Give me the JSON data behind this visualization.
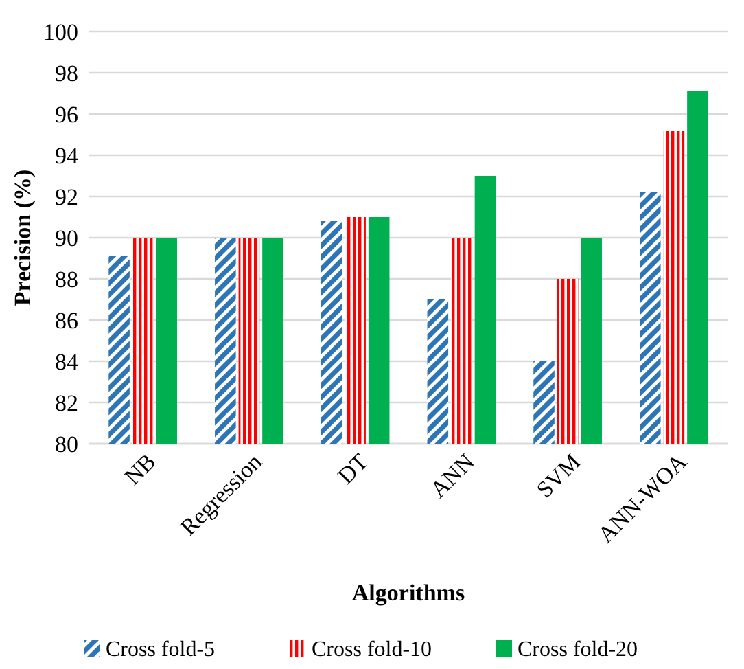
{
  "chart_data": {
    "type": "bar",
    "xlabel": "Algorithms",
    "ylabel": "Precision (%)",
    "categories": [
      "NB",
      "Regression",
      "DT",
      "ANN",
      "SVM",
      "ANN-WOA"
    ],
    "series": [
      {
        "name": "Cross fold-5",
        "color": "#2e75b6",
        "values": [
          89.1,
          90,
          90.8,
          87,
          84,
          92.2
        ]
      },
      {
        "name": "Cross fold-10",
        "color": "#ff0000",
        "values": [
          90,
          90,
          91,
          90,
          88,
          95.2
        ]
      },
      {
        "name": "Cross fold-20",
        "color": "#00b050",
        "values": [
          90,
          90,
          91,
          93,
          90,
          97.1
        ]
      }
    ],
    "ylim": [
      80,
      100
    ],
    "yticks": [
      80,
      82,
      84,
      86,
      88,
      90,
      92,
      94,
      96,
      98,
      100
    ],
    "grid": "y",
    "legend": "bottom"
  }
}
